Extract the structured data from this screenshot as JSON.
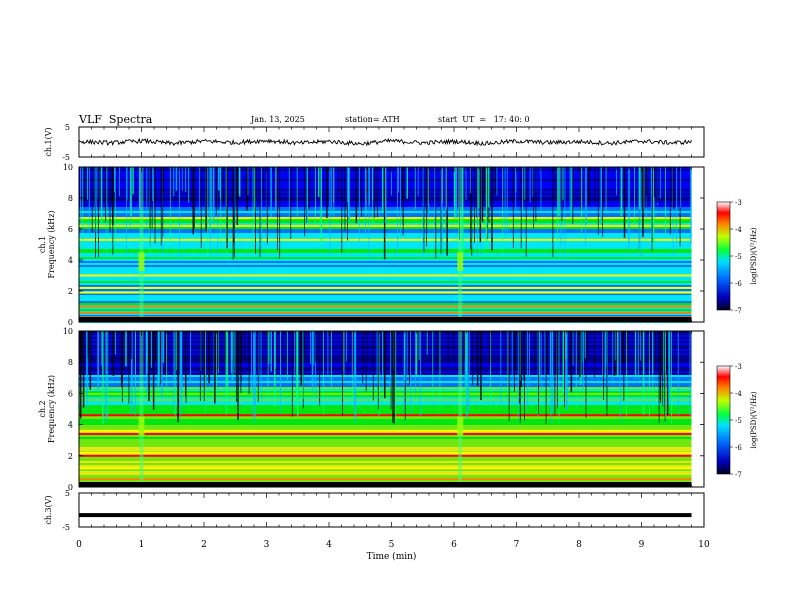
{
  "header": {
    "title": "VLF  Spectra",
    "date": "Jan. 13, 2025",
    "station": "station= ATH",
    "start": "start  UT  =   17: 40: 0"
  },
  "chart_data": [
    {
      "type": "line",
      "panel": "ch1-waveform",
      "ylabel": "ch.1(V)",
      "ylim": [
        -5,
        5
      ],
      "yticks": [
        "5",
        "-5"
      ],
      "x": [
        0,
        0.5,
        1,
        1.5,
        2,
        2.5,
        3,
        3.5,
        4,
        4.5,
        5,
        5.5,
        6,
        6.5,
        7,
        7.5,
        8,
        8.5,
        9,
        9.5,
        9.8
      ],
      "values": [
        0.2,
        -0.3,
        0.4,
        -0.5,
        0.3,
        -0.2,
        0.5,
        -0.4,
        0.2,
        -0.6,
        0.4,
        -0.3,
        0.2,
        -0.5,
        0.3,
        -0.2,
        0.1,
        -0.4,
        0.3,
        -0.3,
        0.1
      ],
      "color": "#000000"
    },
    {
      "type": "heatmap",
      "panel": "ch1-spectrogram",
      "ylabel": "ch.1\nFrequency  (kHz)",
      "ylim": [
        0,
        10
      ],
      "yticks": [
        "0",
        "2",
        "4",
        "6",
        "8",
        "10"
      ],
      "colorbar": {
        "label": "log(PSD)(V²/Hz)",
        "range": [
          -7,
          -3
        ],
        "ticks": [
          "-3",
          "-4",
          "-5",
          "-6",
          "-7"
        ]
      },
      "bands_khz": [
        0.3,
        0.6,
        1.0,
        1.9,
        2.2,
        3.0,
        5.3,
        6.2,
        6.7
      ],
      "bursts_min": [
        1.0,
        6.1
      ]
    },
    {
      "type": "heatmap",
      "panel": "ch2-spectrogram",
      "ylabel": "ch.2\nFrequency  (kHz)",
      "ylim": [
        0,
        10
      ],
      "yticks": [
        "0",
        "2",
        "4",
        "6",
        "8",
        "10"
      ],
      "colorbar": {
        "label": "log(PSD)(V²/Hz)",
        "range": [
          -7,
          -3
        ],
        "ticks": [
          "-3",
          "-4",
          "-5",
          "-6",
          "-7"
        ]
      },
      "bands_khz": [
        0.5,
        1.2,
        2.0,
        2.2,
        3.4,
        3.6,
        4.6
      ],
      "bursts_min": [
        1.0,
        6.1
      ]
    },
    {
      "type": "line",
      "panel": "ch3-waveform",
      "ylabel": "ch.3(V)",
      "ylim": [
        -5,
        5
      ],
      "yticks": [
        "5",
        "-5"
      ],
      "x": [
        0,
        9.8
      ],
      "values": [
        -1.5,
        -1.5
      ],
      "color": "#000000"
    }
  ],
  "xaxis": {
    "label": "Time  (min)",
    "ticks": [
      "0",
      "1",
      "2",
      "3",
      "4",
      "5",
      "6",
      "7",
      "8",
      "9",
      "10"
    ],
    "range": [
      0,
      10
    ]
  },
  "colors": {
    "scale": [
      "#00007f",
      "#0000ff",
      "#0080ff",
      "#00ffff",
      "#00ff00",
      "#80ff00",
      "#ffff00",
      "#ff8000",
      "#ff0000",
      "#ff8080",
      "#ffffff"
    ]
  }
}
